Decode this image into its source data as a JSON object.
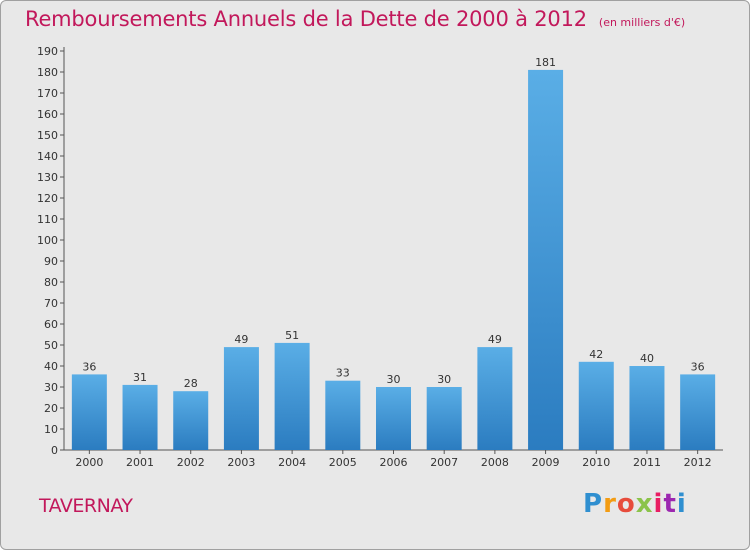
{
  "title": {
    "main": "Remboursements Annuels de la Dette de 2000 à 2012",
    "unit": "(en milliers d'€)"
  },
  "commune": "TAVERNAY",
  "logo": "Proxiti",
  "colors": {
    "title": "#c2185b",
    "bar_top": "#5aaee6",
    "bar_bottom": "#2b7cc0",
    "background": "#e8e8e8"
  },
  "chart_data": {
    "type": "bar",
    "categories": [
      "2000",
      "2001",
      "2002",
      "2003",
      "2004",
      "2005",
      "2006",
      "2007",
      "2008",
      "2009",
      "2010",
      "2011",
      "2012"
    ],
    "values": [
      36,
      31,
      28,
      49,
      51,
      33,
      30,
      30,
      49,
      181,
      42,
      40,
      36
    ],
    "title": "Remboursements Annuels de la Dette de 2000 à 2012",
    "xlabel": "",
    "ylabel": "",
    "ylim": [
      0,
      190
    ],
    "yticks": [
      0,
      10,
      20,
      30,
      40,
      50,
      60,
      70,
      80,
      90,
      100,
      110,
      120,
      130,
      140,
      150,
      160,
      170,
      180,
      190
    ],
    "grid": false,
    "legend": "none"
  }
}
